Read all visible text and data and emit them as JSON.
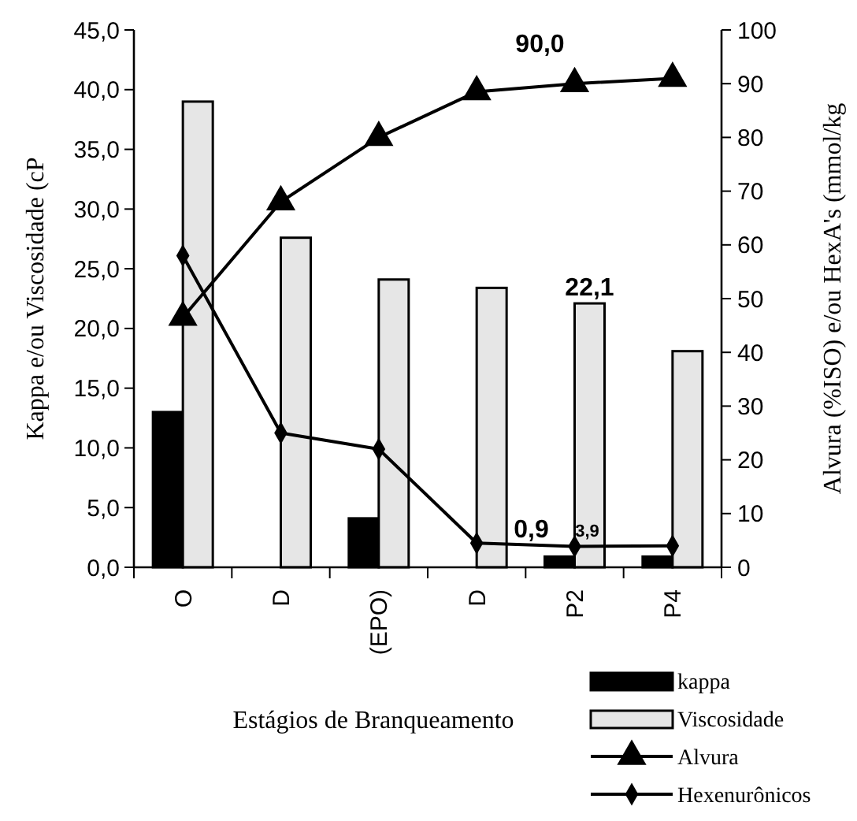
{
  "chart_data": {
    "type": "bar",
    "xlabel": "Estágios de Branqueamento",
    "ylabel": "Kappa e/ou Viscosidade (cP",
    "y2label": "Alvura (%ISO) e/ou HexA's (mmol/kg",
    "categories": [
      "O",
      "D",
      "(EPO)",
      "D",
      "P2",
      "P4"
    ],
    "series": [
      {
        "name": "kappa",
        "color": "#000000",
        "values": [
          13.0,
          null,
          4.1,
          null,
          0.9,
          0.9
        ],
        "value_labels": [
          null,
          null,
          null,
          null,
          "0,9",
          null
        ]
      },
      {
        "name": "Viscosidade",
        "color": "#e6e6e6",
        "values": [
          39.0,
          27.6,
          24.1,
          23.4,
          22.1,
          18.1
        ],
        "value_labels": [
          null,
          null,
          null,
          null,
          "22,1",
          null
        ]
      },
      {
        "name": "Alvura",
        "type": "line",
        "axis": "y2",
        "marker": "triangle",
        "color": "#000000",
        "values": [
          46.5,
          68,
          80,
          88.5,
          90.0,
          91
        ],
        "value_labels": [
          null,
          null,
          null,
          null,
          "90,0",
          null
        ]
      },
      {
        "name": "Hexenurônicos",
        "type": "line",
        "axis": "y2",
        "marker": "diamond",
        "color": "#000000",
        "values": [
          58,
          25,
          22,
          4.5,
          3.9,
          4
        ],
        "value_labels": [
          null,
          null,
          null,
          null,
          "3,9",
          null
        ]
      }
    ],
    "ylim": [
      0,
      45
    ],
    "yticks": [
      {
        "value": 0,
        "label": "0,0"
      },
      {
        "value": 5,
        "label": "5,0"
      },
      {
        "value": 10,
        "label": "10,0"
      },
      {
        "value": 15,
        "label": "15,0"
      },
      {
        "value": 20,
        "label": "20,0"
      },
      {
        "value": 25,
        "label": "25,0"
      },
      {
        "value": 30,
        "label": "30,0"
      },
      {
        "value": 35,
        "label": "35,0"
      },
      {
        "value": 40,
        "label": "40,0"
      },
      {
        "value": 45,
        "label": "45,0"
      }
    ],
    "y2lim": [
      0,
      100
    ],
    "y2ticks": [
      0,
      10,
      20,
      30,
      40,
      50,
      60,
      70,
      80,
      90,
      100
    ],
    "legend": "bottom right",
    "grid": false
  }
}
